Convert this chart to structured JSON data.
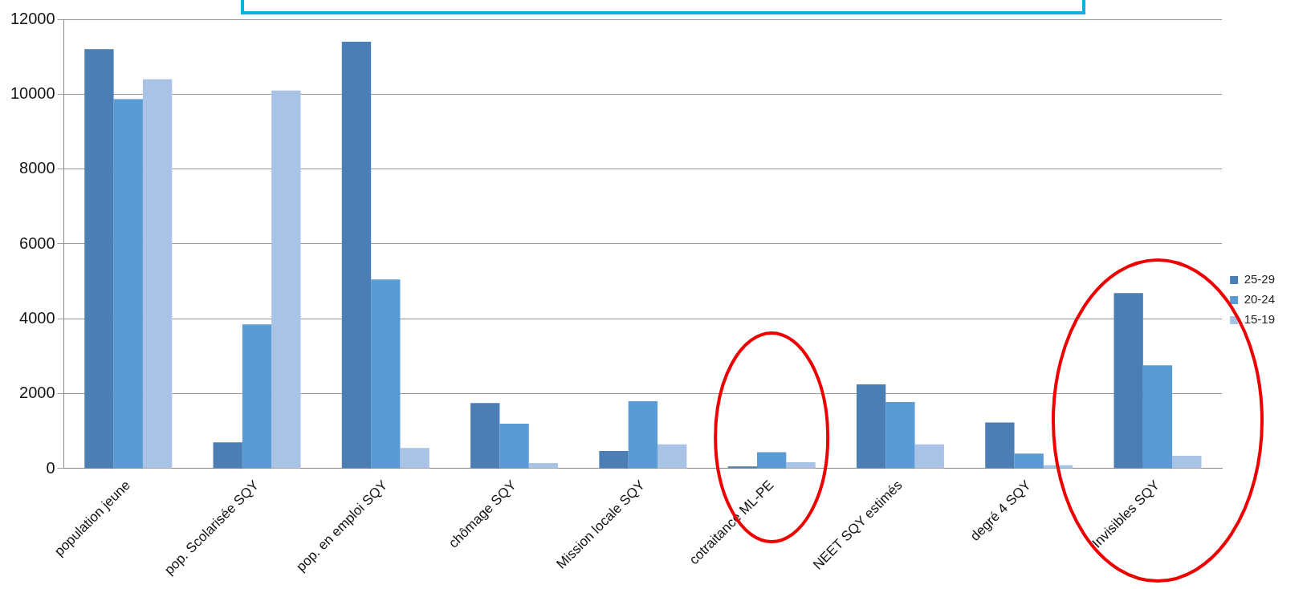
{
  "chart_data": {
    "type": "bar",
    "categories": [
      "population jeune",
      "pop. Scolarisée SQY",
      "pop. en emploi SQY",
      "chômage SQY",
      "Mission locale SQY",
      "cotraitance ML-PE",
      "NEET SQY estimés",
      "degré 4 SQY",
      "Invisibles SQY"
    ],
    "series": [
      {
        "name": "25-29",
        "color": "#4a7eb4",
        "values": [
          11200,
          700,
          11400,
          1750,
          470,
          60,
          2250,
          1230,
          4690
        ]
      },
      {
        "name": "20-24",
        "color": "#5b9bd5",
        "values": [
          9870,
          3850,
          5050,
          1200,
          1800,
          440,
          1780,
          400,
          2760
        ]
      },
      {
        "name": "15-19",
        "color": "#a9c3e6",
        "values": [
          10400,
          10100,
          550,
          150,
          650,
          170,
          650,
          90,
          340
        ]
      }
    ],
    "ylim": [
      0,
      12000
    ],
    "yticks": [
      0,
      2000,
      4000,
      6000,
      8000,
      10000,
      12000
    ],
    "grid": "y",
    "legend": "right"
  }
}
